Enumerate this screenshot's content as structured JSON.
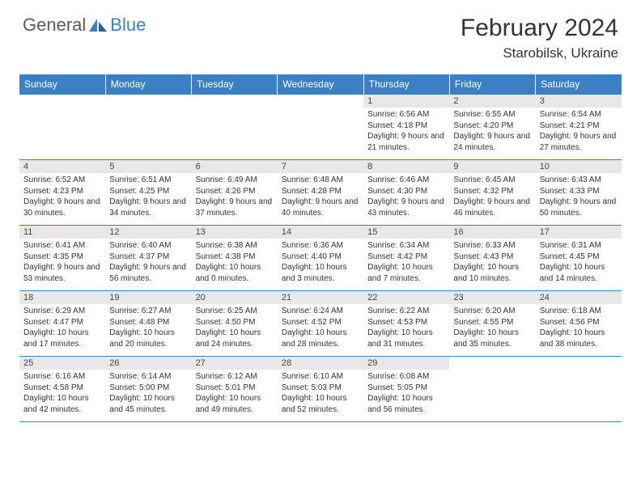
{
  "logo": {
    "part1": "General",
    "part2": "Blue"
  },
  "title": "February 2024",
  "location": "Starobilsk, Ukraine",
  "header_bg": "#3b7fc4",
  "dayhead_bg": "#e8e8e8",
  "days_of_week": [
    "Sunday",
    "Monday",
    "Tuesday",
    "Wednesday",
    "Thursday",
    "Friday",
    "Saturday"
  ],
  "weeks": [
    [
      {
        "n": "",
        "sr": "",
        "ss": "",
        "dl": ""
      },
      {
        "n": "",
        "sr": "",
        "ss": "",
        "dl": ""
      },
      {
        "n": "",
        "sr": "",
        "ss": "",
        "dl": ""
      },
      {
        "n": "",
        "sr": "",
        "ss": "",
        "dl": ""
      },
      {
        "n": "1",
        "sr": "Sunrise: 6:56 AM",
        "ss": "Sunset: 4:18 PM",
        "dl": "Daylight: 9 hours and 21 minutes."
      },
      {
        "n": "2",
        "sr": "Sunrise: 6:55 AM",
        "ss": "Sunset: 4:20 PM",
        "dl": "Daylight: 9 hours and 24 minutes."
      },
      {
        "n": "3",
        "sr": "Sunrise: 6:54 AM",
        "ss": "Sunset: 4:21 PM",
        "dl": "Daylight: 9 hours and 27 minutes."
      }
    ],
    [
      {
        "n": "4",
        "sr": "Sunrise: 6:52 AM",
        "ss": "Sunset: 4:23 PM",
        "dl": "Daylight: 9 hours and 30 minutes."
      },
      {
        "n": "5",
        "sr": "Sunrise: 6:51 AM",
        "ss": "Sunset: 4:25 PM",
        "dl": "Daylight: 9 hours and 34 minutes."
      },
      {
        "n": "6",
        "sr": "Sunrise: 6:49 AM",
        "ss": "Sunset: 4:26 PM",
        "dl": "Daylight: 9 hours and 37 minutes."
      },
      {
        "n": "7",
        "sr": "Sunrise: 6:48 AM",
        "ss": "Sunset: 4:28 PM",
        "dl": "Daylight: 9 hours and 40 minutes."
      },
      {
        "n": "8",
        "sr": "Sunrise: 6:46 AM",
        "ss": "Sunset: 4:30 PM",
        "dl": "Daylight: 9 hours and 43 minutes."
      },
      {
        "n": "9",
        "sr": "Sunrise: 6:45 AM",
        "ss": "Sunset: 4:32 PM",
        "dl": "Daylight: 9 hours and 46 minutes."
      },
      {
        "n": "10",
        "sr": "Sunrise: 6:43 AM",
        "ss": "Sunset: 4:33 PM",
        "dl": "Daylight: 9 hours and 50 minutes."
      }
    ],
    [
      {
        "n": "11",
        "sr": "Sunrise: 6:41 AM",
        "ss": "Sunset: 4:35 PM",
        "dl": "Daylight: 9 hours and 53 minutes."
      },
      {
        "n": "12",
        "sr": "Sunrise: 6:40 AM",
        "ss": "Sunset: 4:37 PM",
        "dl": "Daylight: 9 hours and 56 minutes."
      },
      {
        "n": "13",
        "sr": "Sunrise: 6:38 AM",
        "ss": "Sunset: 4:38 PM",
        "dl": "Daylight: 10 hours and 0 minutes."
      },
      {
        "n": "14",
        "sr": "Sunrise: 6:36 AM",
        "ss": "Sunset: 4:40 PM",
        "dl": "Daylight: 10 hours and 3 minutes."
      },
      {
        "n": "15",
        "sr": "Sunrise: 6:34 AM",
        "ss": "Sunset: 4:42 PM",
        "dl": "Daylight: 10 hours and 7 minutes."
      },
      {
        "n": "16",
        "sr": "Sunrise: 6:33 AM",
        "ss": "Sunset: 4:43 PM",
        "dl": "Daylight: 10 hours and 10 minutes."
      },
      {
        "n": "17",
        "sr": "Sunrise: 6:31 AM",
        "ss": "Sunset: 4:45 PM",
        "dl": "Daylight: 10 hours and 14 minutes."
      }
    ],
    [
      {
        "n": "18",
        "sr": "Sunrise: 6:29 AM",
        "ss": "Sunset: 4:47 PM",
        "dl": "Daylight: 10 hours and 17 minutes."
      },
      {
        "n": "19",
        "sr": "Sunrise: 6:27 AM",
        "ss": "Sunset: 4:48 PM",
        "dl": "Daylight: 10 hours and 20 minutes."
      },
      {
        "n": "20",
        "sr": "Sunrise: 6:25 AM",
        "ss": "Sunset: 4:50 PM",
        "dl": "Daylight: 10 hours and 24 minutes."
      },
      {
        "n": "21",
        "sr": "Sunrise: 6:24 AM",
        "ss": "Sunset: 4:52 PM",
        "dl": "Daylight: 10 hours and 28 minutes."
      },
      {
        "n": "22",
        "sr": "Sunrise: 6:22 AM",
        "ss": "Sunset: 4:53 PM",
        "dl": "Daylight: 10 hours and 31 minutes."
      },
      {
        "n": "23",
        "sr": "Sunrise: 6:20 AM",
        "ss": "Sunset: 4:55 PM",
        "dl": "Daylight: 10 hours and 35 minutes."
      },
      {
        "n": "24",
        "sr": "Sunrise: 6:18 AM",
        "ss": "Sunset: 4:56 PM",
        "dl": "Daylight: 10 hours and 38 minutes."
      }
    ],
    [
      {
        "n": "25",
        "sr": "Sunrise: 6:16 AM",
        "ss": "Sunset: 4:58 PM",
        "dl": "Daylight: 10 hours and 42 minutes."
      },
      {
        "n": "26",
        "sr": "Sunrise: 6:14 AM",
        "ss": "Sunset: 5:00 PM",
        "dl": "Daylight: 10 hours and 45 minutes."
      },
      {
        "n": "27",
        "sr": "Sunrise: 6:12 AM",
        "ss": "Sunset: 5:01 PM",
        "dl": "Daylight: 10 hours and 49 minutes."
      },
      {
        "n": "28",
        "sr": "Sunrise: 6:10 AM",
        "ss": "Sunset: 5:03 PM",
        "dl": "Daylight: 10 hours and 52 minutes."
      },
      {
        "n": "29",
        "sr": "Sunrise: 6:08 AM",
        "ss": "Sunset: 5:05 PM",
        "dl": "Daylight: 10 hours and 56 minutes."
      },
      {
        "n": "",
        "sr": "",
        "ss": "",
        "dl": ""
      },
      {
        "n": "",
        "sr": "",
        "ss": "",
        "dl": ""
      }
    ]
  ]
}
